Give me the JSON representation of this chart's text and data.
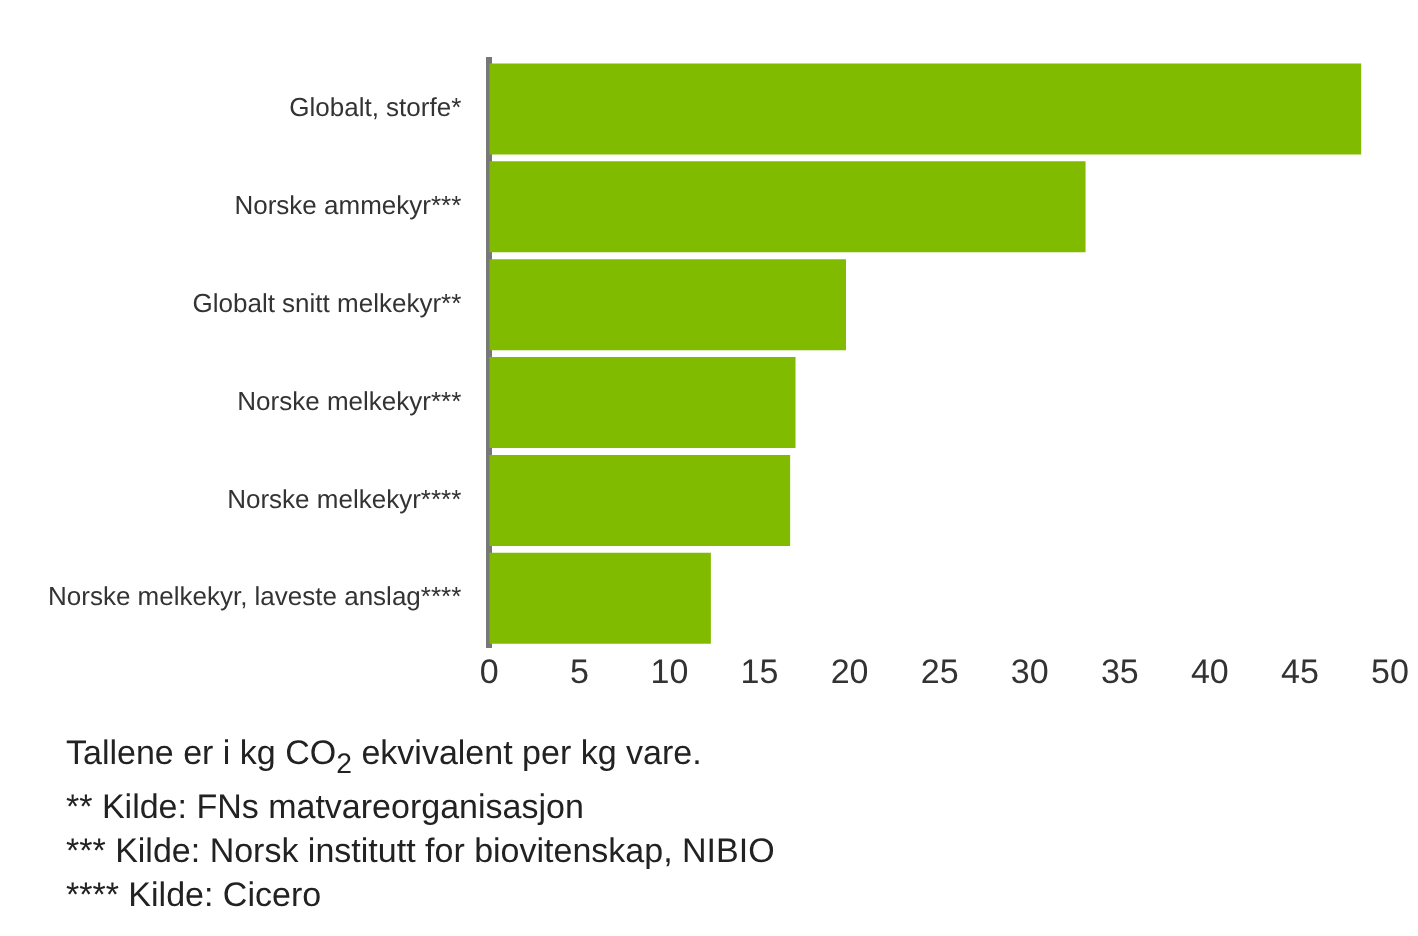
{
  "chart_data": {
    "type": "bar",
    "orientation": "horizontal",
    "categories": [
      "Globalt, storfe*",
      "Norske ammekyr***",
      "Globalt snitt melkekyr**",
      "Norske melkekyr***",
      "Norske melkekyr****",
      "Norske melkekyr, laveste anslag****"
    ],
    "values": [
      48.4,
      33.1,
      19.8,
      17.0,
      16.7,
      12.3
    ],
    "color": "#80bb00",
    "xlim": [
      0,
      50
    ],
    "xticks": [
      0,
      5,
      10,
      15,
      20,
      25,
      30,
      35,
      40,
      45,
      50
    ],
    "grid": false,
    "legend": false,
    "annotations": [
      "Tallene er i kg CO$_{2}$ ekvivalent per kg vare.",
      "** Kilde: FNs matvareorganisasjon",
      "*** Kilde: Norsk institutt for biovitenskap, NIBIO",
      "**** Kilde: Cicero"
    ]
  }
}
